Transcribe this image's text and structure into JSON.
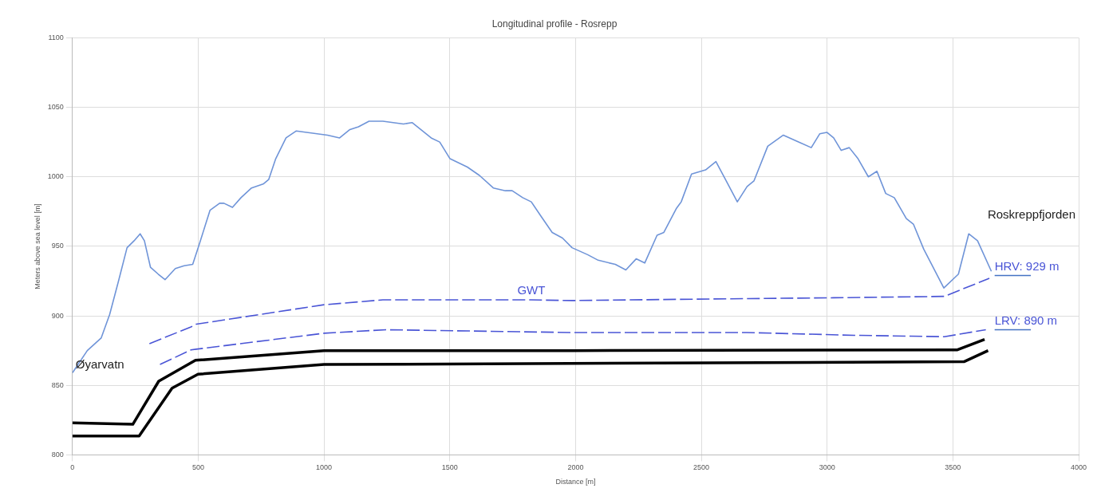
{
  "chart_data": {
    "type": "line",
    "title": "Longitudinal profile - Rosrepp",
    "xlabel": "Distance [m]",
    "ylabel": "Meters above sea level [m]",
    "xlim": [
      0,
      4000
    ],
    "xticks": [
      0,
      500,
      1000,
      1500,
      2000,
      2500,
      3000,
      3500,
      4000
    ],
    "ylim": [
      800,
      1100
    ],
    "yticks": [
      800,
      850,
      900,
      950,
      1000,
      1050,
      1100
    ],
    "grid": true,
    "legend": false,
    "marker": "none",
    "series": [
      {
        "color": "#6f94d8",
        "line_style": "solid",
        "x": [
          0,
          59,
          114,
          148,
          183,
          217,
          245,
          269,
          286,
          310,
          341,
          368,
          409,
          444,
          478,
          505,
          547,
          585,
          602,
          636,
          670,
          712,
          760,
          780,
          808,
          849,
          890,
          931,
          1014,
          1062,
          1103,
          1137,
          1179,
          1234,
          1316,
          1350,
          1426,
          1460,
          1501,
          1570,
          1618,
          1673,
          1721,
          1748,
          1790,
          1824,
          1865,
          1907,
          1948,
          1986,
          2048,
          2090,
          2158,
          2200,
          2241,
          2275,
          2324,
          2351,
          2400,
          2420,
          2461,
          2517,
          2558,
          2599,
          2643,
          2682,
          2709,
          2764,
          2826,
          2888,
          2937,
          2971,
          2999,
          3026,
          3056,
          3088,
          3123,
          3164,
          3198,
          3233,
          3267,
          3315,
          3343,
          3384,
          3464,
          3522,
          3563,
          3598,
          3653
        ],
        "values": [
          859,
          875,
          884,
          901,
          925,
          949,
          954,
          959,
          954,
          935,
          930,
          926,
          934,
          936,
          937,
          952,
          976,
          981,
          981,
          978,
          985,
          992,
          995,
          998,
          1013,
          1028,
          1033,
          1032,
          1030,
          1028,
          1034,
          1036,
          1040,
          1040,
          1038,
          1039,
          1028,
          1025,
          1013,
          1007,
          1001,
          992,
          990,
          990,
          985,
          982,
          971,
          960,
          956,
          949,
          944,
          940,
          937,
          933,
          941,
          938,
          958,
          960,
          977,
          982,
          1002,
          1005,
          1011,
          997,
          982,
          993,
          997,
          1022,
          1030,
          1025,
          1021,
          1031,
          1032,
          1028,
          1019,
          1021,
          1013,
          1000,
          1004,
          988,
          985,
          970,
          966,
          948,
          920,
          930,
          959,
          954,
          932
        ]
      },
      {
        "name": "GWT",
        "color": "#4a55d6",
        "line_style": "dashed",
        "x": [
          306,
          471,
          492,
          1000,
          1234,
          1824,
          1986,
          2475,
          3026,
          3466,
          3645
        ],
        "values": [
          880,
          892,
          894,
          908,
          911.5,
          911.5,
          911,
          912,
          913,
          914,
          927
        ]
      },
      {
        "color": "#4a55d6",
        "line_style": "dashed",
        "x": [
          348,
          471,
          492,
          1000,
          1247,
          1986,
          2681,
          3107,
          3466,
          3631
        ],
        "values": [
          865,
          875.5,
          876,
          887.5,
          890,
          888,
          888,
          886,
          885,
          890
        ]
      },
      {
        "color": "#4472c4",
        "line_style": "solid",
        "x": [
          3666,
          3810
        ],
        "values": [
          929,
          929
        ]
      },
      {
        "color": "#4472c4",
        "line_style": "solid",
        "x": [
          3666,
          3810
        ],
        "values": [
          890,
          890
        ]
      },
      {
        "color": "#000000",
        "line_style": "solid",
        "x": [
          0,
          240,
          343,
          489,
          1000,
          1986,
          3516,
          3626
        ],
        "values": [
          823,
          822,
          853,
          868,
          875,
          875,
          875.5,
          883
        ]
      },
      {
        "color": "#000000",
        "line_style": "solid",
        "x": [
          0,
          265,
          396,
          499,
          1000,
          3544,
          3640
        ],
        "values": [
          813.5,
          813.5,
          848,
          858,
          865,
          867,
          875
        ]
      }
    ],
    "annotations": [
      "Øyarvatn",
      "Roskreppfjorden",
      {
        "text": "HRV: 929 m",
        "x": 3666,
        "y": 929
      },
      {
        "text": "LRV: 890 m",
        "x": 3666,
        "y": 890
      }
    ]
  }
}
